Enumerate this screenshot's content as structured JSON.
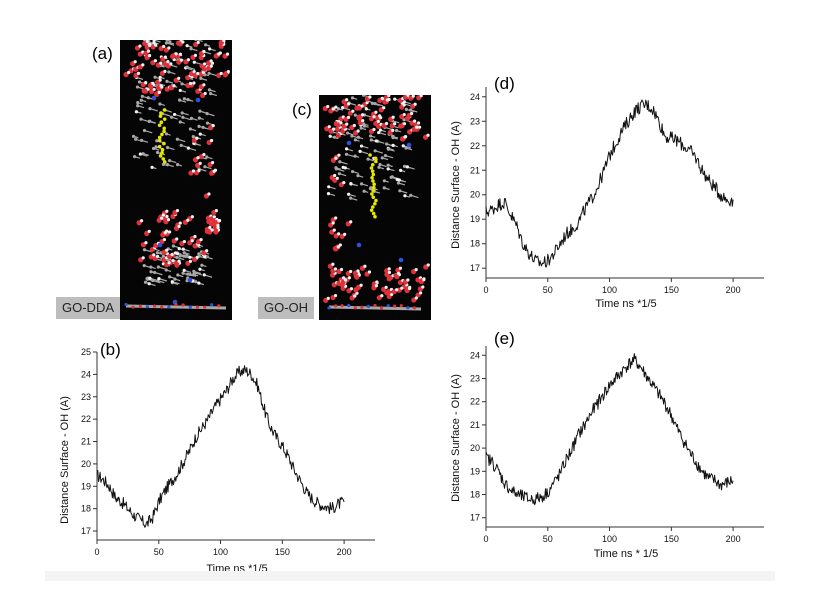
{
  "panels": {
    "a": {
      "letter": "(a)",
      "tag": "GO-DDA"
    },
    "c": {
      "letter": "(c)",
      "tag": "GO-OH"
    },
    "b": {
      "letter": "(b)"
    },
    "d": {
      "letter": "(d)"
    },
    "e": {
      "letter": "(e)"
    }
  },
  "colors": {
    "line": "#111111",
    "molecule_bg": "#050505",
    "tag_bg": "#bdbdbd",
    "oxygen": "#e0303a",
    "hydrogen": "#f2f2f2",
    "carbon": "#a8a8a8",
    "nitrogen": "#3050e0",
    "highlight": "#e6e600"
  },
  "chart_data": [
    {
      "id": "b",
      "type": "line",
      "xlabel": "Time ns *1/5",
      "ylabel": "Distance Surface - OH (A)",
      "xlim": [
        0,
        225
      ],
      "ylim": [
        16.6,
        25
      ],
      "xticks": [
        0,
        50,
        100,
        150,
        200
      ],
      "yticks": [
        17,
        18,
        19,
        20,
        21,
        22,
        23,
        24,
        25
      ],
      "series": [
        {
          "x": [
            0,
            5,
            10,
            15,
            20,
            25,
            30,
            35,
            40,
            45,
            50,
            55,
            60,
            65,
            70,
            75,
            80,
            85,
            90,
            95,
            100,
            105,
            110,
            115,
            120,
            125,
            130,
            135,
            140,
            145,
            150,
            155,
            160,
            165,
            170,
            175,
            180,
            185,
            190,
            195,
            200
          ],
          "y": [
            19.5,
            19.3,
            19.0,
            18.5,
            18.3,
            18.0,
            17.7,
            17.5,
            17.3,
            17.6,
            18.3,
            18.8,
            19.2,
            19.6,
            20.1,
            20.6,
            21.2,
            21.6,
            22.0,
            22.5,
            22.9,
            23.3,
            23.8,
            24.1,
            24.2,
            24.0,
            23.5,
            22.5,
            21.7,
            21.2,
            20.8,
            20.3,
            19.7,
            19.2,
            18.7,
            18.4,
            18.2,
            18.1,
            18.0,
            18.2,
            18.3
          ]
        }
      ]
    },
    {
      "id": "d",
      "type": "line",
      "xlabel": "Time ns *1/5",
      "ylabel": "Distance Surface - OH (A)",
      "xlim": [
        0,
        225
      ],
      "ylim": [
        16.6,
        24.4
      ],
      "xticks": [
        0,
        50,
        100,
        150,
        200
      ],
      "yticks": [
        17,
        18,
        19,
        20,
        21,
        22,
        23,
        24
      ],
      "series": [
        {
          "x": [
            0,
            5,
            10,
            15,
            20,
            25,
            30,
            35,
            40,
            45,
            50,
            55,
            60,
            65,
            70,
            75,
            80,
            85,
            90,
            95,
            100,
            105,
            110,
            115,
            120,
            125,
            130,
            135,
            140,
            145,
            150,
            155,
            160,
            165,
            170,
            175,
            180,
            185,
            190,
            195,
            200
          ],
          "y": [
            19.3,
            19.4,
            19.6,
            19.7,
            19.2,
            18.7,
            18.0,
            17.6,
            17.3,
            17.2,
            17.3,
            17.6,
            18.0,
            18.4,
            18.6,
            18.9,
            19.4,
            19.8,
            20.3,
            20.9,
            21.6,
            22.1,
            22.6,
            23.0,
            23.4,
            23.6,
            23.7,
            23.5,
            23.0,
            22.4,
            22.3,
            22.2,
            22.0,
            21.8,
            21.5,
            21.0,
            20.6,
            20.3,
            20.0,
            19.8,
            19.8
          ]
        }
      ]
    },
    {
      "id": "e",
      "type": "line",
      "xlabel": "Time ns * 1/5",
      "ylabel": "Distance Surface - OH (A)",
      "xlim": [
        0,
        225
      ],
      "ylim": [
        16.6,
        24.4
      ],
      "xticks": [
        0,
        50,
        100,
        150,
        200
      ],
      "yticks": [
        17,
        18,
        19,
        20,
        21,
        22,
        23,
        24
      ],
      "series": [
        {
          "x": [
            0,
            5,
            10,
            15,
            20,
            25,
            30,
            35,
            40,
            45,
            50,
            55,
            60,
            65,
            70,
            75,
            80,
            85,
            90,
            95,
            100,
            105,
            110,
            115,
            120,
            125,
            130,
            135,
            140,
            145,
            150,
            155,
            160,
            165,
            170,
            175,
            180,
            185,
            190,
            195,
            200
          ],
          "y": [
            19.6,
            19.4,
            19.0,
            18.5,
            18.2,
            18.0,
            17.9,
            17.8,
            17.8,
            17.9,
            18.1,
            18.5,
            18.9,
            19.5,
            20.0,
            20.6,
            21.0,
            21.5,
            21.9,
            22.3,
            22.7,
            23.0,
            23.3,
            23.6,
            23.8,
            23.5,
            23.1,
            22.7,
            22.3,
            21.9,
            21.4,
            20.8,
            20.3,
            19.8,
            19.4,
            19.0,
            18.7,
            18.6,
            18.4,
            18.5,
            18.6
          ]
        }
      ]
    }
  ]
}
